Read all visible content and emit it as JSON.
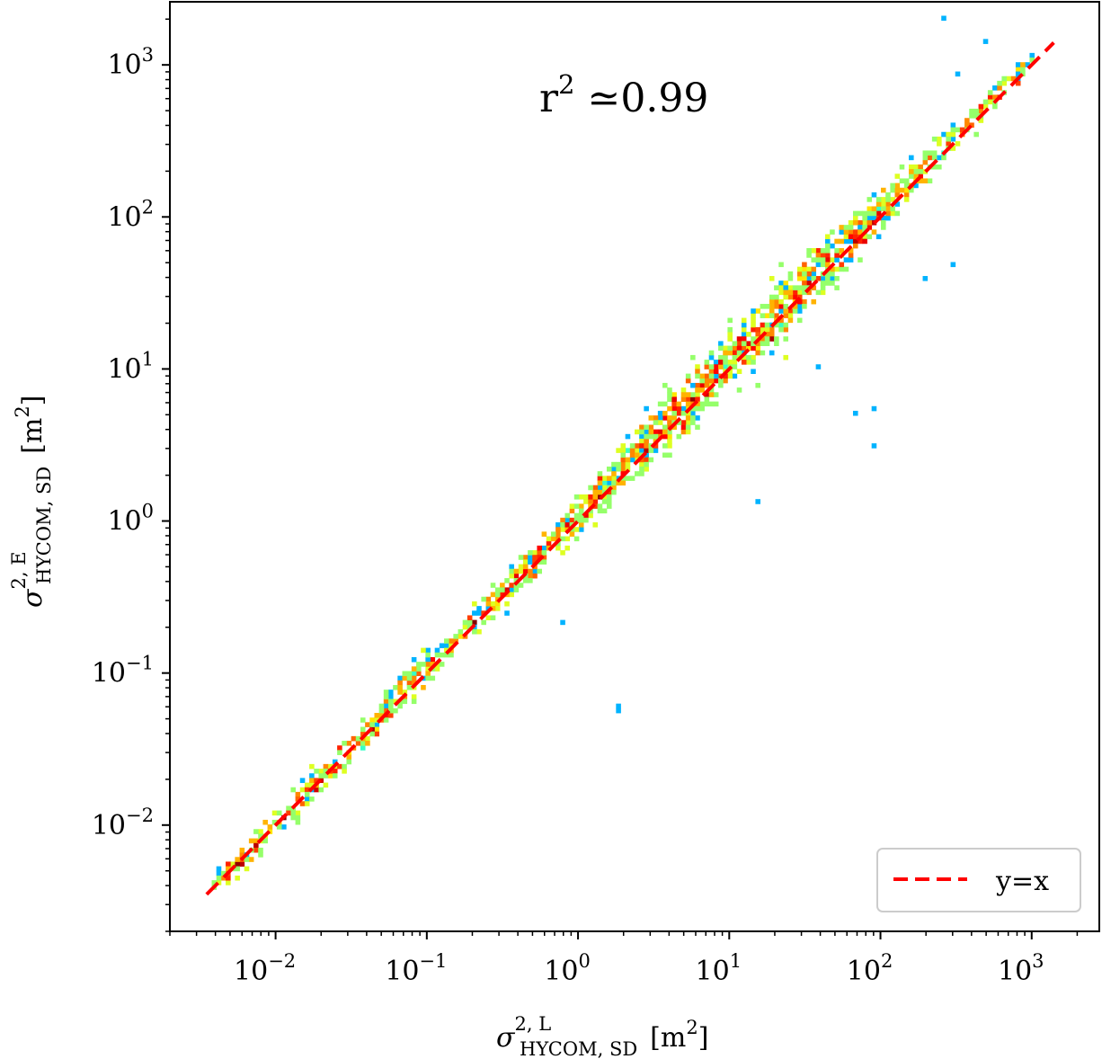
{
  "chart_data": {
    "type": "heatmap",
    "title": "",
    "xlabel": {
      "symbol": "σ",
      "sup": "2, L",
      "sub": "HYCOM, SD",
      "unit": "[m",
      "unit_sup": "2",
      "unit_end": "]"
    },
    "ylabel": {
      "symbol": "σ",
      "sup": "2, E",
      "sub": "HYCOM, SD",
      "unit": "[m",
      "unit_sup": "2",
      "unit_end": "]"
    },
    "xscale": "log",
    "yscale": "log",
    "xlim": [
      0.002,
      2800
    ],
    "ylim": [
      0.002,
      2600
    ],
    "x_ticks": [
      {
        "base": "10",
        "exp": "−2",
        "value": 0.01
      },
      {
        "base": "10",
        "exp": "−1",
        "value": 0.1
      },
      {
        "base": "10",
        "exp": "0",
        "value": 1
      },
      {
        "base": "10",
        "exp": "1",
        "value": 10
      },
      {
        "base": "10",
        "exp": "2",
        "value": 100
      },
      {
        "base": "10",
        "exp": "3",
        "value": 1000
      }
    ],
    "y_ticks": [
      {
        "base": "10",
        "exp": "−2",
        "value": 0.01
      },
      {
        "base": "10",
        "exp": "−1",
        "value": 0.1
      },
      {
        "base": "10",
        "exp": "0",
        "value": 1
      },
      {
        "base": "10",
        "exp": "1",
        "value": 10
      },
      {
        "base": "10",
        "exp": "2",
        "value": 100
      },
      {
        "base": "10",
        "exp": "3",
        "value": 1000
      }
    ],
    "annotation": {
      "base": "r",
      "exp": "2",
      "text": " ≃0.99"
    },
    "reference_line": {
      "label": "y=x",
      "style": "dashed",
      "color": "#ff0000",
      "from": 0.0035,
      "to": 1400
    },
    "legend": {
      "position": "bottom-right",
      "entries": [
        "y=x"
      ]
    },
    "grid": false,
    "colormap": "jet",
    "density_ridge": [
      {
        "x": 0.004,
        "y": 0.004,
        "density": 0.2
      },
      {
        "x": 0.01,
        "y": 0.01,
        "density": 0.3
      },
      {
        "x": 0.03,
        "y": 0.03,
        "density": 0.3
      },
      {
        "x": 0.1,
        "y": 0.11,
        "density": 0.35
      },
      {
        "x": 0.3,
        "y": 0.32,
        "density": 0.3
      },
      {
        "x": 1,
        "y": 1.1,
        "density": 0.45
      },
      {
        "x": 3,
        "y": 3.4,
        "density": 0.65
      },
      {
        "x": 10,
        "y": 11,
        "density": 0.8
      },
      {
        "x": 20,
        "y": 22,
        "density": 0.9
      },
      {
        "x": 40,
        "y": 45,
        "density": 0.75
      },
      {
        "x": 100,
        "y": 110,
        "density": 0.5
      },
      {
        "x": 300,
        "y": 320,
        "density": 0.25
      },
      {
        "x": 1000,
        "y": 1100,
        "density": 0.15
      }
    ],
    "outliers": [
      {
        "x": 0.35,
        "y": 0.24
      },
      {
        "x": 0.8,
        "y": 0.21
      },
      {
        "x": 1.8,
        "y": 0.06
      },
      {
        "x": 1.9,
        "y": 0.055
      },
      {
        "x": 15,
        "y": 1.3
      },
      {
        "x": 70,
        "y": 5
      },
      {
        "x": 90,
        "y": 3.2
      },
      {
        "x": 90,
        "y": 5.5
      },
      {
        "x": 40,
        "y": 10
      },
      {
        "x": 270,
        "y": 2000
      },
      {
        "x": 500,
        "y": 1400
      },
      {
        "x": 330,
        "y": 900
      },
      {
        "x": 300,
        "y": 50
      },
      {
        "x": 200,
        "y": 40
      }
    ]
  }
}
